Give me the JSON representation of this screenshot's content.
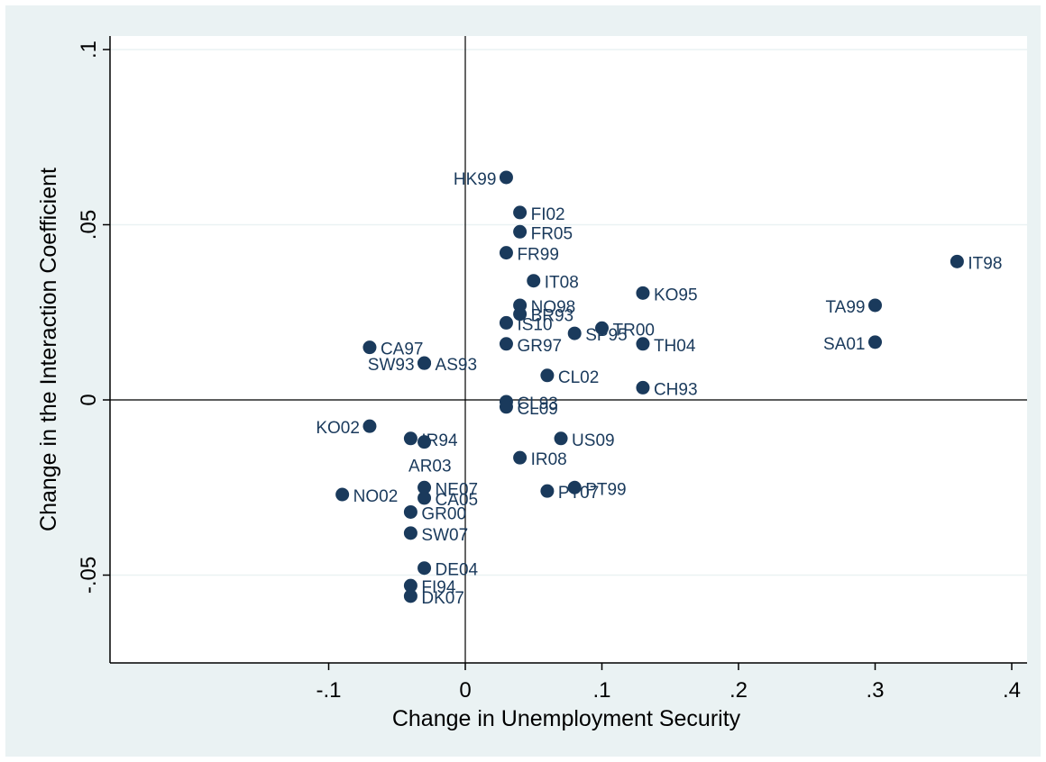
{
  "chart_data": {
    "type": "scatter",
    "xlabel": "Change in Unemployment Security",
    "ylabel": "Change in the Interaction Coefficient",
    "xlim": [
      -0.26,
      0.404
    ],
    "ylim": [
      -0.074,
      0.1
    ],
    "x_ticks": [
      {
        "value": -0.1,
        "label": "-.1"
      },
      {
        "value": 0,
        "label": "0"
      },
      {
        "value": 0.1,
        "label": ".1"
      },
      {
        "value": 0.2,
        "label": ".2"
      },
      {
        "value": 0.3,
        "label": ".3"
      },
      {
        "value": 0.4,
        "label": ".4"
      }
    ],
    "y_ticks": [
      {
        "value": -0.05,
        "label": "-.05"
      },
      {
        "value": 0,
        "label": "0"
      },
      {
        "value": 0.05,
        "label": ".05"
      },
      {
        "value": 0.1,
        "label": ".1"
      }
    ],
    "reference_lines": {
      "x": 0,
      "y": 0
    },
    "grid": true,
    "marker_color": "#1a3a5c",
    "points": [
      {
        "label": "HK99",
        "x": 0.03,
        "y": 0.0635,
        "pos": "left"
      },
      {
        "label": "FI02",
        "x": 0.04,
        "y": 0.0535,
        "pos": "right"
      },
      {
        "label": "FR05",
        "x": 0.04,
        "y": 0.048,
        "pos": "right"
      },
      {
        "label": "FR99",
        "x": 0.03,
        "y": 0.042,
        "pos": "right"
      },
      {
        "label": "IT08",
        "x": 0.05,
        "y": 0.034,
        "pos": "right"
      },
      {
        "label": "IT98",
        "x": 0.36,
        "y": 0.0395,
        "pos": "right"
      },
      {
        "label": "KO95",
        "x": 0.13,
        "y": 0.0305,
        "pos": "right"
      },
      {
        "label": "TA99",
        "x": 0.3,
        "y": 0.027,
        "pos": "left"
      },
      {
        "label": "NO98",
        "x": 0.04,
        "y": 0.027,
        "pos": "right"
      },
      {
        "label": "BR93",
        "x": 0.04,
        "y": 0.0245,
        "pos": "right"
      },
      {
        "label": "IS10",
        "x": 0.03,
        "y": 0.022,
        "pos": "right"
      },
      {
        "label": "TR00",
        "x": 0.1,
        "y": 0.0205,
        "pos": "right"
      },
      {
        "label": "SP95",
        "x": 0.08,
        "y": 0.019,
        "pos": "right"
      },
      {
        "label": "GR97",
        "x": 0.03,
        "y": 0.016,
        "pos": "right"
      },
      {
        "label": "TH04",
        "x": 0.13,
        "y": 0.016,
        "pos": "right"
      },
      {
        "label": "SA01",
        "x": 0.3,
        "y": 0.0165,
        "pos": "left"
      },
      {
        "label": "CA97",
        "x": -0.07,
        "y": 0.015,
        "pos": "right"
      },
      {
        "label": "SW93",
        "x": -0.03,
        "y": 0.0105,
        "pos": "left"
      },
      {
        "label": "AS93",
        "x": -0.03,
        "y": 0.0105,
        "pos": "right"
      },
      {
        "label": "CL02",
        "x": 0.06,
        "y": 0.007,
        "pos": "right"
      },
      {
        "label": "CH93",
        "x": 0.13,
        "y": 0.0035,
        "pos": "right"
      },
      {
        "label": "CL93",
        "x": 0.03,
        "y": -0.0005,
        "pos": "right"
      },
      {
        "label": "CL09",
        "x": 0.03,
        "y": -0.002,
        "pos": "right"
      },
      {
        "label": "KO02",
        "x": -0.07,
        "y": -0.0075,
        "pos": "left"
      },
      {
        "label": "IR94",
        "x": -0.04,
        "y": -0.011,
        "pos": "right"
      },
      {
        "label": "AR03",
        "x": -0.03,
        "y": -0.012,
        "pos": "below-left"
      },
      {
        "label": "US09",
        "x": 0.07,
        "y": -0.011,
        "pos": "right"
      },
      {
        "label": "IR08",
        "x": 0.04,
        "y": -0.0165,
        "pos": "right"
      },
      {
        "label": "NE07",
        "x": -0.03,
        "y": -0.025,
        "pos": "right"
      },
      {
        "label": "CA05",
        "x": -0.03,
        "y": -0.028,
        "pos": "right"
      },
      {
        "label": "NO02",
        "x": -0.09,
        "y": -0.027,
        "pos": "right"
      },
      {
        "label": "PT99",
        "x": 0.08,
        "y": -0.025,
        "pos": "right"
      },
      {
        "label": "PT07",
        "x": 0.06,
        "y": -0.026,
        "pos": "right"
      },
      {
        "label": "GR00",
        "x": -0.04,
        "y": -0.032,
        "pos": "right"
      },
      {
        "label": "SW07",
        "x": -0.04,
        "y": -0.038,
        "pos": "right"
      },
      {
        "label": "DE04",
        "x": -0.03,
        "y": -0.048,
        "pos": "right"
      },
      {
        "label": "FI94",
        "x": -0.04,
        "y": -0.053,
        "pos": "right"
      },
      {
        "label": "DK07",
        "x": -0.04,
        "y": -0.056,
        "pos": "right"
      }
    ]
  }
}
